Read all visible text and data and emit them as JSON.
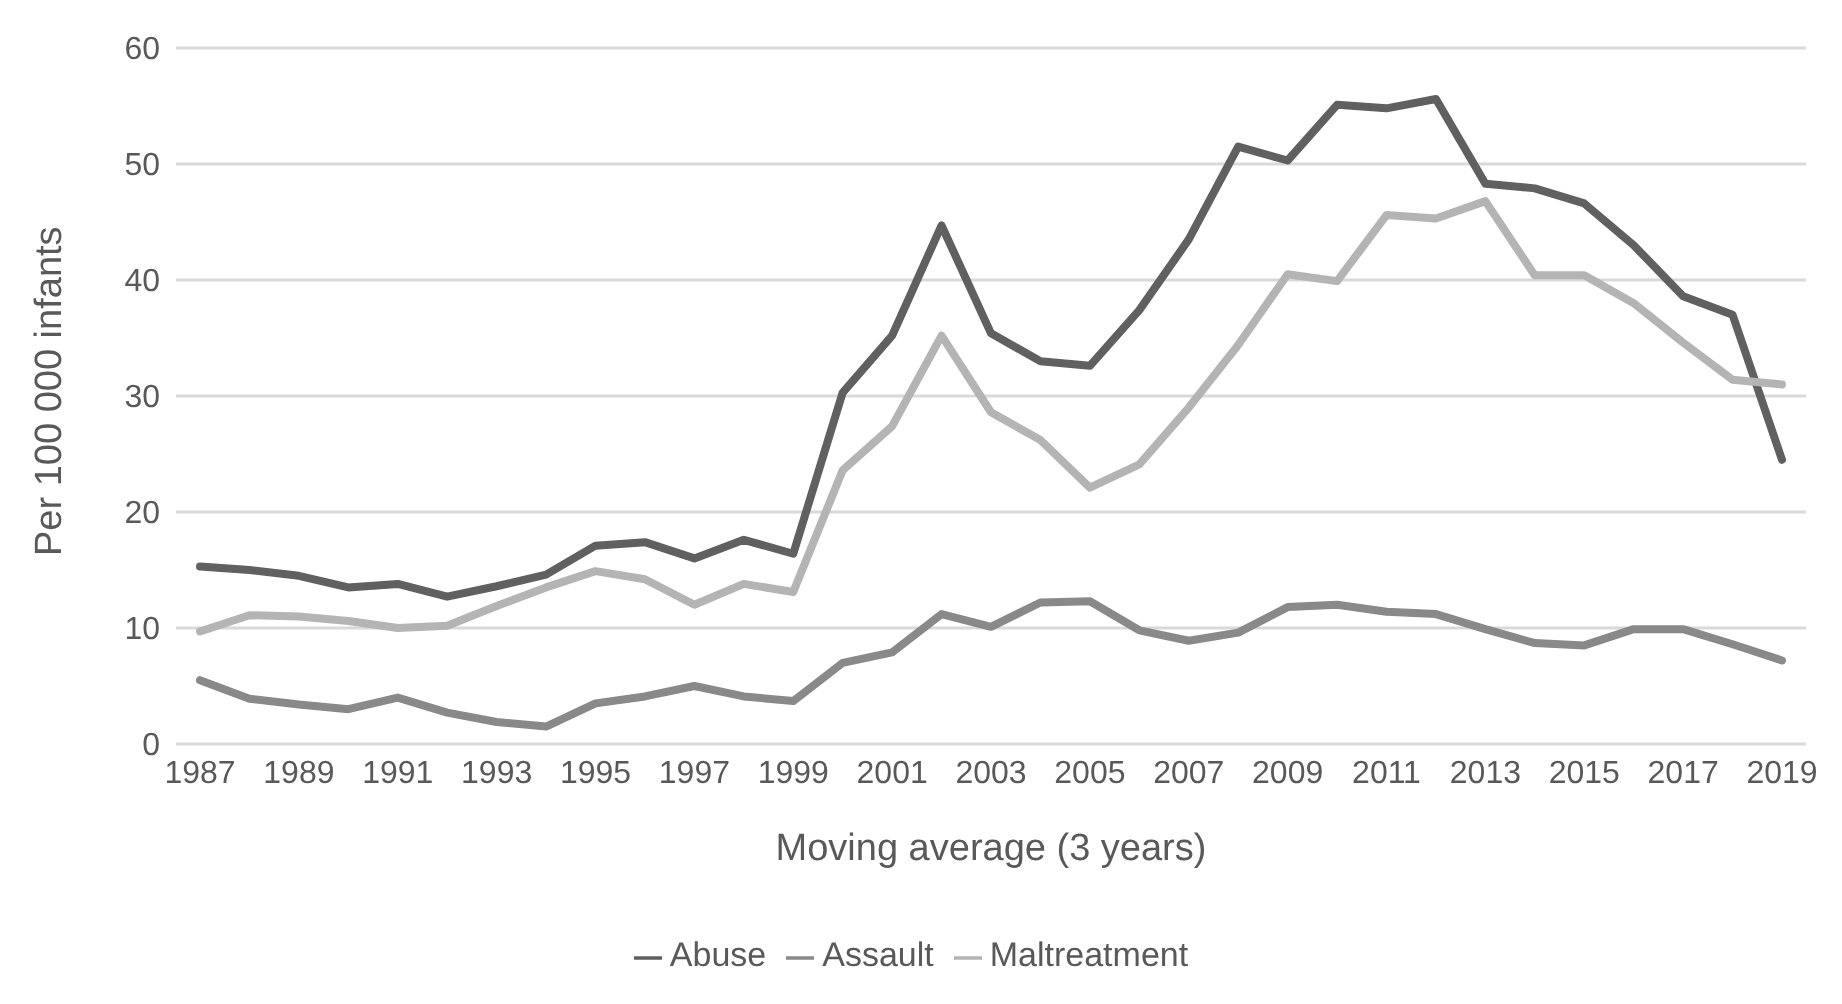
{
  "chart_data": {
    "type": "line",
    "xlabel": "Moving average (3 years)",
    "ylabel": "Per 100 000 infants",
    "categories": [
      "1987",
      null,
      "1989",
      null,
      "1991",
      null,
      "1993",
      null,
      "1995",
      null,
      "1997",
      null,
      "1999",
      null,
      "2001",
      null,
      "2003",
      null,
      "2005",
      null,
      "2007",
      null,
      "2009",
      null,
      "2011",
      null,
      "2013",
      null,
      "2015",
      null,
      "2017",
      null,
      "2019"
    ],
    "series": [
      {
        "name": "Abuse",
        "color": "#606060",
        "values": [
          15.3,
          15.0,
          14.5,
          13.5,
          13.8,
          12.7,
          13.6,
          14.6,
          17.1,
          17.4,
          16.0,
          17.6,
          16.4,
          30.3,
          35.2,
          44.7,
          35.4,
          33.0,
          32.6,
          37.4,
          43.5,
          51.5,
          50.3,
          55.1,
          54.8,
          55.6,
          48.3,
          47.9,
          46.6,
          43.0,
          38.6,
          37.0,
          24.5
        ]
      },
      {
        "name": "Maltreatment",
        "color": "#b4b4b4",
        "values": [
          9.7,
          11.1,
          11.0,
          10.6,
          10.0,
          10.2,
          11.9,
          13.5,
          14.9,
          14.2,
          12.0,
          13.8,
          13.1,
          23.6,
          27.4,
          35.2,
          28.6,
          26.2,
          22.1,
          24.1,
          29.0,
          34.4,
          40.5,
          39.9,
          45.6,
          45.3,
          46.8,
          40.4,
          40.4,
          38.0,
          34.6,
          31.4,
          31.0
        ]
      },
      {
        "name": "Assault",
        "color": "#898989",
        "values": [
          5.5,
          3.9,
          3.4,
          3.0,
          4.0,
          2.7,
          1.9,
          1.5,
          3.5,
          4.1,
          5.0,
          4.1,
          3.7,
          7.0,
          7.9,
          11.2,
          10.1,
          12.2,
          12.3,
          9.8,
          8.9,
          9.6,
          11.8,
          12.0,
          11.4,
          11.2,
          9.9,
          8.7,
          8.5,
          9.9,
          9.9,
          8.6,
          7.2
        ]
      }
    ],
    "ylim": [
      0,
      60
    ],
    "yticks": [
      0,
      10,
      20,
      30,
      40,
      50,
      60
    ],
    "grid": "y",
    "legend": "bottom",
    "marker": "none",
    "line_style": "solid"
  }
}
